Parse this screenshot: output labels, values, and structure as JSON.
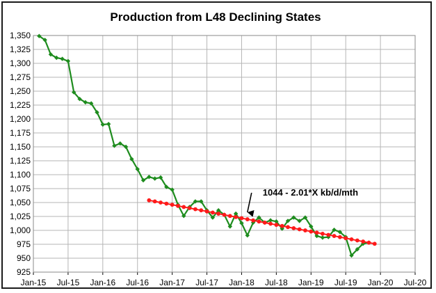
{
  "chart_data": {
    "type": "line",
    "title": "Production from L48 Declining States",
    "xlabel": "",
    "ylabel": "",
    "ylim": [
      925,
      1350
    ],
    "ytick_values": [
      925,
      950,
      975,
      1000,
      1025,
      1050,
      1075,
      1100,
      1125,
      1150,
      1175,
      1200,
      1225,
      1250,
      1275,
      1300,
      1325,
      1350
    ],
    "ytick_labels": [
      "925",
      "950",
      "975",
      "1,000",
      "1,025",
      "1,050",
      "1,075",
      "1,100",
      "1,125",
      "1,150",
      "1,175",
      "1,200",
      "1,225",
      "1,250",
      "1,275",
      "1,300",
      "1,325",
      "1,350"
    ],
    "xlim": [
      "2015-01",
      "2020-07"
    ],
    "xtick_values": [
      "2015-01",
      "2015-07",
      "2016-01",
      "2016-07",
      "2017-01",
      "2017-07",
      "2018-01",
      "2018-07",
      "2019-01",
      "2019-07",
      "2020-01",
      "2020-07"
    ],
    "xtick_labels": [
      "Jan-15",
      "Jul-15",
      "Jan-16",
      "Jul-16",
      "Jan-17",
      "Jul-17",
      "Jan-18",
      "Jul-18",
      "Jan-19",
      "Jul-19",
      "Jan-20",
      "Jul-20"
    ],
    "grid": true,
    "legend": "none",
    "series": [
      {
        "color": "#1e8c1e",
        "marker": "diamond",
        "x": [
          "2015-02",
          "2015-03",
          "2015-04",
          "2015-05",
          "2015-06",
          "2015-07",
          "2015-08",
          "2015-09",
          "2015-10",
          "2015-11",
          "2015-12",
          "2016-01",
          "2016-02",
          "2016-03",
          "2016-04",
          "2016-05",
          "2016-06",
          "2016-07",
          "2016-08",
          "2016-09",
          "2016-10",
          "2016-11",
          "2016-12",
          "2017-01",
          "2017-02",
          "2017-03",
          "2017-04",
          "2017-05",
          "2017-06",
          "2017-07",
          "2017-08",
          "2017-09",
          "2017-10",
          "2017-11",
          "2017-12",
          "2018-01",
          "2018-02",
          "2018-03",
          "2018-04",
          "2018-05",
          "2018-06",
          "2018-07",
          "2018-08",
          "2018-09",
          "2018-10",
          "2018-11",
          "2018-12",
          "2019-01",
          "2019-02",
          "2019-03",
          "2019-04",
          "2019-05",
          "2019-06",
          "2019-07",
          "2019-08",
          "2019-09",
          "2019-10",
          "2019-11"
        ],
        "values": [
          1349,
          1342,
          1316,
          1310,
          1308,
          1304,
          1248,
          1236,
          1230,
          1228,
          1212,
          1190,
          1191,
          1152,
          1156,
          1150,
          1128,
          1110,
          1090,
          1096,
          1093,
          1095,
          1078,
          1073,
          1046,
          1026,
          1042,
          1052,
          1052,
          1036,
          1023,
          1036,
          1028,
          1007,
          1030,
          1013,
          991,
          1014,
          1023,
          1014,
          1018,
          1016,
          1003,
          1017,
          1023,
          1017,
          1023,
          1007,
          990,
          987,
          988,
          1001,
          997,
          988,
          955,
          966,
          976,
          978
        ]
      },
      {
        "color": "#ff1a1a",
        "marker": "circle",
        "x_start": "2016-09",
        "x_end": "2019-12",
        "values": [
          1054.0,
          1052.0,
          1050.0,
          1048.0,
          1046.0,
          1044.0,
          1042.0,
          1040.0,
          1038.0,
          1036.0,
          1034.0,
          1032.0,
          1029.9,
          1027.9,
          1025.9,
          1023.9,
          1021.9,
          1019.9,
          1017.9,
          1015.9,
          1013.9,
          1011.9,
          1009.9,
          1007.9,
          1005.9,
          1003.9,
          1001.9,
          999.9,
          997.9,
          995.9,
          993.9,
          991.9,
          989.9,
          987.9,
          985.9,
          983.9,
          981.9,
          979.9,
          977.9,
          975.9
        ]
      }
    ],
    "annotations": [
      {
        "text": "1044 - 2.01*X kb/d/mth",
        "x": "2018-02",
        "y": 1060,
        "arrow_to": {
          "x": "2018-02",
          "y": 1030
        }
      }
    ]
  }
}
